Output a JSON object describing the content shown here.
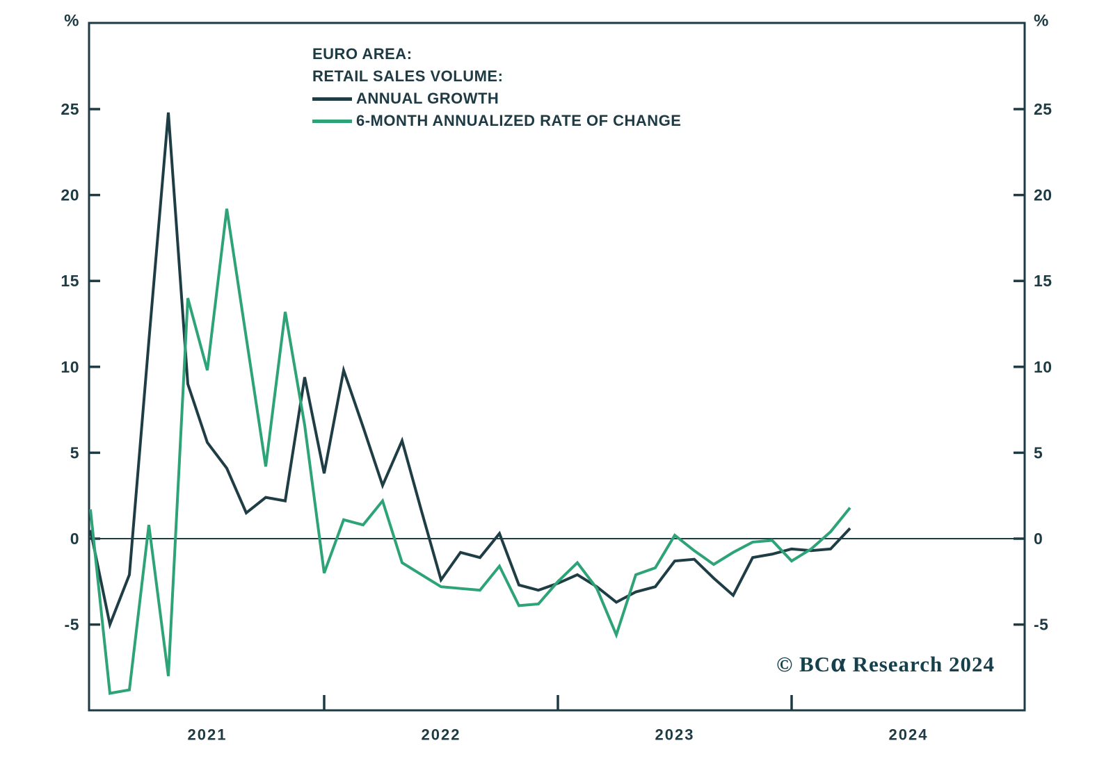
{
  "page": {
    "background": "#ffffff",
    "ink_color": "#1e3a43"
  },
  "title": {
    "line1": "EURO AREA:",
    "line2": "RETAIL SALES VOLUME:"
  },
  "legend": [
    {
      "label": "ANNUAL GROWTH",
      "color": "#1f3d45"
    },
    {
      "label": "6-MONTH ANNUALIZED RATE OF CHANGE",
      "color": "#2da377"
    }
  ],
  "copyright": {
    "prefix": "© BC",
    "alpha": "α",
    "suffix": " Research 2024"
  },
  "chart_data": {
    "type": "line",
    "title": "EURO AREA: RETAIL SALES VOLUME",
    "grid": false,
    "legend_position": "top-left-inside",
    "x": [
      "2020-12",
      "2021-01",
      "2021-02",
      "2021-03",
      "2021-04",
      "2021-05",
      "2021-06",
      "2021-07",
      "2021-08",
      "2021-09",
      "2021-10",
      "2021-11",
      "2021-12",
      "2022-01",
      "2022-02",
      "2022-03",
      "2022-04",
      "2022-05",
      "2022-06",
      "2022-07",
      "2022-08",
      "2022-09",
      "2022-10",
      "2022-11",
      "2022-12",
      "2023-01",
      "2023-02",
      "2023-03",
      "2023-04",
      "2023-05",
      "2023-06",
      "2023-07",
      "2023-08",
      "2023-09",
      "2023-10",
      "2023-11",
      "2023-12",
      "2024-01",
      "2024-02",
      "2024-03"
    ],
    "series": [
      {
        "name": "ANNUAL GROWTH",
        "color": "#1f3d45",
        "values": [
          0.5,
          -5.0,
          -2.1,
          11.5,
          24.8,
          9.0,
          5.6,
          4.1,
          1.5,
          2.4,
          2.2,
          9.4,
          3.8,
          9.8,
          6.5,
          3.1,
          5.7,
          1.6,
          -2.4,
          -0.8,
          -1.1,
          0.3,
          -2.7,
          -3.0,
          -2.6,
          -2.1,
          -2.8,
          -3.7,
          -3.1,
          -2.8,
          -1.3,
          -1.2,
          -2.3,
          -3.3,
          -1.1,
          -0.9,
          -0.6,
          -0.7,
          -0.6,
          0.6
        ]
      },
      {
        "name": "6-MONTH ANNUALIZED RATE OF CHANGE",
        "color": "#2da377",
        "values": [
          1.7,
          -9.0,
          -8.8,
          0.8,
          -8.0,
          14.0,
          9.8,
          19.2,
          11.7,
          4.2,
          13.2,
          6.6,
          -2.0,
          1.1,
          0.8,
          2.2,
          -1.4,
          -2.1,
          -2.8,
          -2.9,
          -3.0,
          -1.6,
          -3.9,
          -3.8,
          -2.5,
          -1.4,
          -2.9,
          -5.6,
          -2.1,
          -1.7,
          0.2,
          -0.7,
          -1.5,
          -0.8,
          -0.2,
          -0.1,
          -1.3,
          -0.6,
          0.4,
          1.8
        ]
      }
    ],
    "y_axis": {
      "unit": "%",
      "ticks": [
        25,
        20,
        15,
        10,
        5,
        0,
        -5
      ],
      "range": [
        -10,
        30
      ],
      "zero_line": true,
      "mirrored_right": true
    },
    "x_axis": {
      "year_boundary_ticks": [
        "2021-12",
        "2022-12",
        "2023-12"
      ],
      "year_labels": [
        {
          "text": "2021",
          "center_index": 6
        },
        {
          "text": "2022",
          "center_index": 18
        },
        {
          "text": "2023",
          "center_index": 30
        },
        {
          "text": "2024",
          "center_index": 42
        }
      ]
    }
  }
}
